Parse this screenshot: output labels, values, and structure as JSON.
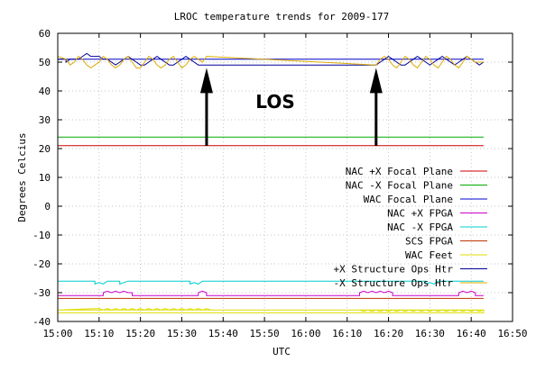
{
  "chart_data": {
    "type": "line",
    "title": "LROC temperature trends for 2009-177",
    "xlabel": "UTC",
    "ylabel": "Degrees Celcius",
    "xlim": [
      0,
      110
    ],
    "ylim": [
      -40,
      60
    ],
    "x_ticks": [
      0,
      10,
      20,
      30,
      40,
      50,
      60,
      70,
      80,
      90,
      100,
      110
    ],
    "x_tick_labels": [
      "15:00",
      "15:10",
      "15:20",
      "15:30",
      "15:40",
      "15:50",
      "16:00",
      "16:10",
      "16:20",
      "16:30",
      "16:40",
      "16:50"
    ],
    "y_ticks": [
      -40,
      -30,
      -20,
      -10,
      0,
      10,
      20,
      30,
      40,
      50,
      60
    ],
    "y_tick_labels": [
      "-40",
      "-30",
      "-20",
      "-10",
      "0",
      "10",
      "20",
      "30",
      "40",
      "50",
      "60"
    ],
    "grid": true,
    "legend_position": "right",
    "annotation": {
      "text": "LOS",
      "arrows": [
        {
          "x": 36,
          "from_y": 21,
          "to_y": 48
        },
        {
          "x": 77,
          "from_y": 21,
          "to_y": 48
        }
      ]
    },
    "series": [
      {
        "name": "NAC +X Focal Plane",
        "color": "#cc0000",
        "points": [
          [
            0,
            21
          ],
          [
            103,
            21
          ]
        ]
      },
      {
        "name": "NAC -X Focal Plane",
        "color": "#00aa00",
        "points": [
          [
            0,
            24
          ],
          [
            103,
            24
          ]
        ]
      },
      {
        "name": "WAC Focal Plane",
        "color": "#0000cc",
        "points": [
          [
            0,
            51
          ],
          [
            103,
            51
          ]
        ]
      },
      {
        "name": "NAC +X FPGA",
        "color": "#cc00cc",
        "points": [
          [
            0,
            -31
          ],
          [
            11,
            -31
          ],
          [
            11,
            -30
          ],
          [
            12,
            -29.5
          ],
          [
            13,
            -30
          ],
          [
            14,
            -29.5
          ],
          [
            15,
            -30
          ],
          [
            16,
            -29.5
          ],
          [
            17,
            -30
          ],
          [
            18,
            -30
          ],
          [
            18,
            -31
          ],
          [
            34,
            -31
          ],
          [
            34,
            -30
          ],
          [
            35,
            -29.5
          ],
          [
            36,
            -30
          ],
          [
            36,
            -31
          ],
          [
            73,
            -31
          ],
          [
            73,
            -30
          ],
          [
            74,
            -29.5
          ],
          [
            75,
            -30
          ],
          [
            76,
            -29.5
          ],
          [
            77,
            -30
          ],
          [
            78,
            -29.5
          ],
          [
            79,
            -30
          ],
          [
            80,
            -29.5
          ],
          [
            81,
            -30
          ],
          [
            81,
            -31
          ],
          [
            97,
            -31
          ],
          [
            97,
            -30
          ],
          [
            98,
            -29.5
          ],
          [
            99,
            -30
          ],
          [
            100,
            -29.5
          ],
          [
            101,
            -30
          ],
          [
            101,
            -31
          ],
          [
            103,
            -31
          ]
        ]
      },
      {
        "name": "NAC -X FPGA",
        "color": "#00cccc",
        "points": [
          [
            0,
            -26
          ],
          [
            9,
            -26
          ],
          [
            9,
            -27
          ],
          [
            10,
            -26.5
          ],
          [
            11,
            -27
          ],
          [
            12,
            -26
          ],
          [
            15,
            -26
          ],
          [
            15,
            -27
          ],
          [
            16,
            -26.5
          ],
          [
            17,
            -26
          ],
          [
            32,
            -26
          ],
          [
            32,
            -27
          ],
          [
            33,
            -26.5
          ],
          [
            34,
            -27
          ],
          [
            35,
            -26
          ],
          [
            89,
            -26
          ],
          [
            89,
            -27
          ],
          [
            90,
            -26.5
          ],
          [
            91,
            -27
          ],
          [
            92,
            -26
          ],
          [
            103,
            -26
          ]
        ]
      },
      {
        "name": "SCS FPGA",
        "color": "#bb3300",
        "points": [
          [
            0,
            -32
          ],
          [
            103,
            -32
          ]
        ]
      },
      {
        "name": "WAC Feet",
        "color": "#dddd00",
        "points": [
          [
            0,
            -36
          ],
          [
            103,
            -36
          ],
          [
            103,
            -37
          ],
          [
            0,
            -37
          ],
          [
            0,
            -36
          ],
          [
            10,
            -35.5
          ],
          [
            11,
            -36
          ],
          [
            12,
            -35.5
          ],
          [
            13,
            -36
          ],
          [
            14,
            -35.5
          ],
          [
            15,
            -36
          ],
          [
            16,
            -35.5
          ],
          [
            17,
            -36
          ],
          [
            18,
            -35.5
          ],
          [
            19,
            -36
          ],
          [
            20,
            -35.5
          ],
          [
            21,
            -36
          ],
          [
            22,
            -35.5
          ],
          [
            23,
            -36
          ],
          [
            24,
            -35.5
          ],
          [
            25,
            -36
          ],
          [
            26,
            -35.5
          ],
          [
            27,
            -36
          ],
          [
            28,
            -35.5
          ],
          [
            29,
            -36
          ],
          [
            30,
            -35.5
          ],
          [
            31,
            -36
          ],
          [
            32,
            -35.5
          ],
          [
            33,
            -36
          ],
          [
            34,
            -35.5
          ],
          [
            35,
            -36
          ],
          [
            36,
            -35.5
          ],
          [
            37,
            -36
          ],
          [
            73,
            -36
          ],
          [
            74,
            -36.5
          ],
          [
            75,
            -36
          ],
          [
            76,
            -36.5
          ],
          [
            77,
            -36
          ],
          [
            78,
            -36.5
          ],
          [
            79,
            -36
          ],
          [
            80,
            -36.5
          ],
          [
            81,
            -36
          ],
          [
            82,
            -36.5
          ],
          [
            83,
            -36
          ],
          [
            84,
            -36.5
          ],
          [
            85,
            -36
          ],
          [
            86,
            -36.5
          ],
          [
            87,
            -36
          ],
          [
            88,
            -36.5
          ],
          [
            89,
            -36
          ],
          [
            90,
            -36.5
          ],
          [
            91,
            -36
          ],
          [
            92,
            -36.5
          ],
          [
            93,
            -36
          ],
          [
            94,
            -36.5
          ],
          [
            95,
            -36
          ],
          [
            96,
            -36.5
          ],
          [
            97,
            -36
          ],
          [
            98,
            -36.5
          ],
          [
            99,
            -36
          ],
          [
            100,
            -36.5
          ],
          [
            101,
            -36
          ],
          [
            102,
            -36.5
          ],
          [
            103,
            -36
          ]
        ]
      },
      {
        "name": "+X Structure Ops Htr",
        "color": "#000099",
        "points": [
          [
            0,
            51
          ],
          [
            2,
            51
          ],
          [
            2,
            50
          ],
          [
            3,
            51
          ],
          [
            5,
            51
          ],
          [
            6,
            52
          ],
          [
            7,
            53
          ],
          [
            8,
            52
          ],
          [
            10,
            52
          ],
          [
            11,
            51
          ],
          [
            12,
            51
          ],
          [
            13,
            50
          ],
          [
            14,
            49
          ],
          [
            15,
            50
          ],
          [
            16,
            51
          ],
          [
            17,
            52
          ],
          [
            18,
            51
          ],
          [
            19,
            50
          ],
          [
            20,
            49
          ],
          [
            21,
            49
          ],
          [
            22,
            50
          ],
          [
            23,
            51
          ],
          [
            24,
            52
          ],
          [
            25,
            51
          ],
          [
            26,
            50
          ],
          [
            27,
            49
          ],
          [
            28,
            49
          ],
          [
            29,
            50
          ],
          [
            30,
            51
          ],
          [
            31,
            52
          ],
          [
            32,
            51
          ],
          [
            33,
            50
          ],
          [
            34,
            49
          ],
          [
            35,
            49
          ],
          [
            36,
            49
          ],
          [
            77,
            49
          ],
          [
            78,
            50
          ],
          [
            79,
            51
          ],
          [
            80,
            52
          ],
          [
            81,
            51
          ],
          [
            82,
            50
          ],
          [
            83,
            49
          ],
          [
            84,
            49
          ],
          [
            85,
            50
          ],
          [
            86,
            51
          ],
          [
            87,
            52
          ],
          [
            88,
            51
          ],
          [
            89,
            50
          ],
          [
            90,
            49
          ],
          [
            91,
            50
          ],
          [
            92,
            51
          ],
          [
            93,
            52
          ],
          [
            94,
            51
          ],
          [
            95,
            50
          ],
          [
            96,
            49
          ],
          [
            97,
            50
          ],
          [
            98,
            51
          ],
          [
            99,
            52
          ],
          [
            100,
            51
          ],
          [
            101,
            50
          ],
          [
            102,
            49
          ],
          [
            103,
            50
          ]
        ]
      },
      {
        "name": "-X Structure Ops Htr",
        "color": "#ddaa00",
        "points": [
          [
            0,
            52
          ],
          [
            2,
            51
          ],
          [
            3,
            49
          ],
          [
            4,
            50
          ],
          [
            5,
            52
          ],
          [
            6,
            51
          ],
          [
            7,
            49
          ],
          [
            8,
            48
          ],
          [
            9,
            49
          ],
          [
            10,
            50
          ],
          [
            11,
            52
          ],
          [
            12,
            51
          ],
          [
            13,
            49
          ],
          [
            14,
            48
          ],
          [
            15,
            49
          ],
          [
            16,
            51
          ],
          [
            17,
            52
          ],
          [
            18,
            50
          ],
          [
            19,
            48
          ],
          [
            20,
            48
          ],
          [
            21,
            50
          ],
          [
            22,
            52
          ],
          [
            23,
            51
          ],
          [
            24,
            49
          ],
          [
            25,
            48
          ],
          [
            26,
            49
          ],
          [
            27,
            51
          ],
          [
            28,
            52
          ],
          [
            29,
            50
          ],
          [
            30,
            48
          ],
          [
            31,
            49
          ],
          [
            32,
            51
          ],
          [
            33,
            52
          ],
          [
            34,
            51
          ],
          [
            35,
            50
          ],
          [
            36,
            52
          ],
          [
            77,
            49
          ],
          [
            78,
            51
          ],
          [
            79,
            52
          ],
          [
            80,
            51
          ],
          [
            81,
            49
          ],
          [
            82,
            48
          ],
          [
            83,
            50
          ],
          [
            84,
            52
          ],
          [
            85,
            51
          ],
          [
            86,
            49
          ],
          [
            87,
            48
          ],
          [
            88,
            50
          ],
          [
            89,
            52
          ],
          [
            90,
            51
          ],
          [
            91,
            49
          ],
          [
            92,
            48
          ],
          [
            93,
            50
          ],
          [
            94,
            52
          ],
          [
            95,
            51
          ],
          [
            96,
            49
          ],
          [
            97,
            48
          ],
          [
            98,
            50
          ],
          [
            99,
            52
          ],
          [
            100,
            51
          ],
          [
            101,
            50
          ],
          [
            102,
            50
          ],
          [
            103,
            50
          ]
        ]
      }
    ]
  }
}
